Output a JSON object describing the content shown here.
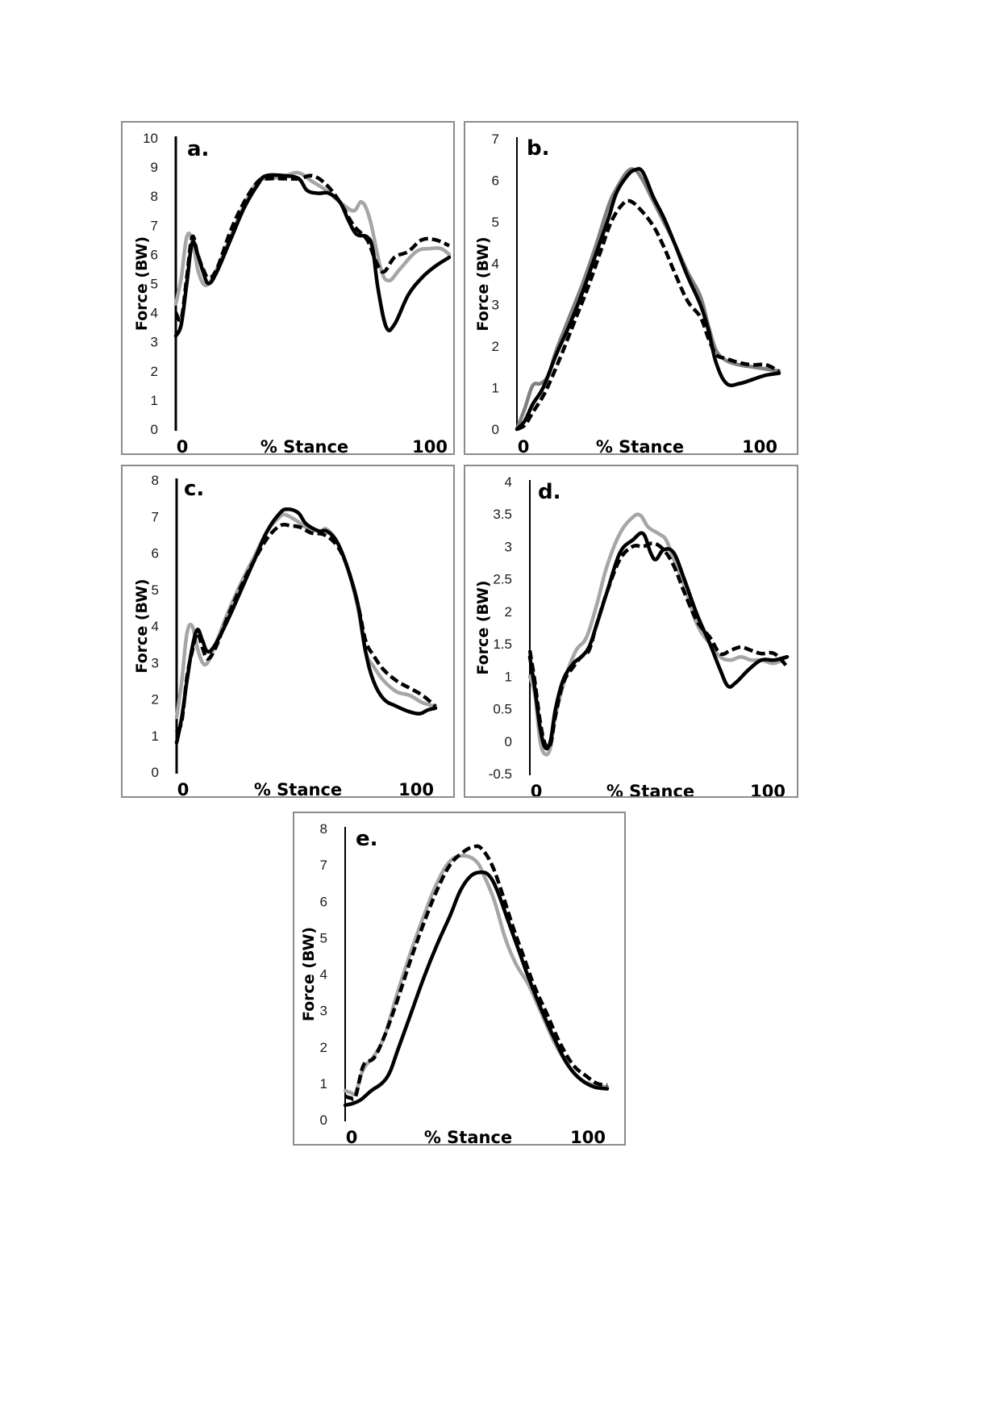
{
  "figure": {
    "series_styles": {
      "solid_black": {
        "color": "#000000",
        "dash": "solid"
      },
      "gray": {
        "color": "#a6a6a6",
        "dash": "solid"
      },
      "dark_gray": {
        "color": "#808080",
        "dash": "solid"
      },
      "dashed_black": {
        "color": "#000000",
        "dash": "dashed"
      }
    }
  },
  "chart_data": [
    {
      "id": "a",
      "type": "line",
      "panel_label": "a.",
      "title": "",
      "xlabel": "% Stance",
      "ylabel": "Force (BW)",
      "x_tick_labels": [
        "0",
        "100"
      ],
      "xlim": [
        0,
        100
      ],
      "ylim": [
        0,
        10
      ],
      "y_ticks": [
        0,
        1,
        2,
        3,
        4,
        5,
        6,
        7,
        8,
        9,
        10
      ],
      "y_tick_labels": [
        "0",
        "1",
        "2",
        "3",
        "4",
        "5",
        "6",
        "7",
        "8",
        "9",
        "10"
      ],
      "grid": false,
      "legend": "none",
      "series": [
        {
          "name": "solid-black",
          "style": "solid_black",
          "x": [
            0,
            2,
            4,
            6,
            8,
            10,
            12,
            15,
            20,
            25,
            30,
            33,
            40,
            45,
            48,
            52,
            56,
            60,
            63,
            66,
            70,
            72,
            74,
            77,
            80,
            85,
            90,
            95,
            100
          ],
          "y": [
            3.2,
            3.6,
            5.0,
            6.4,
            6.0,
            5.4,
            5.0,
            5.4,
            6.5,
            7.6,
            8.4,
            8.7,
            8.7,
            8.6,
            8.2,
            8.1,
            8.1,
            7.8,
            7.2,
            6.7,
            6.6,
            6.2,
            4.8,
            3.5,
            3.6,
            4.6,
            5.2,
            5.6,
            5.9
          ]
        },
        {
          "name": "gray",
          "style": "gray",
          "x": [
            0,
            2,
            4,
            6,
            8,
            10,
            12,
            15,
            20,
            25,
            30,
            35,
            40,
            45,
            50,
            55,
            60,
            65,
            68,
            71,
            75,
            78,
            82,
            88,
            93,
            97,
            100
          ],
          "y": [
            4.3,
            5.2,
            6.6,
            6.5,
            5.5,
            5.0,
            5.0,
            5.5,
            6.6,
            7.7,
            8.5,
            8.6,
            8.7,
            8.8,
            8.5,
            8.2,
            7.8,
            7.5,
            7.8,
            7.2,
            5.5,
            5.1,
            5.5,
            6.1,
            6.2,
            6.2,
            6.0
          ]
        },
        {
          "name": "dashed-black",
          "style": "dashed_black",
          "x": [
            0,
            2,
            4,
            6,
            8,
            10,
            12,
            15,
            20,
            25,
            30,
            33,
            40,
            45,
            50,
            55,
            60,
            65,
            70,
            73,
            76,
            80,
            85,
            90,
            95,
            100
          ],
          "y": [
            4.0,
            3.8,
            5.2,
            6.6,
            6.0,
            5.5,
            5.2,
            5.5,
            6.8,
            7.8,
            8.5,
            8.6,
            8.6,
            8.6,
            8.7,
            8.4,
            7.8,
            7.0,
            6.5,
            5.8,
            5.4,
            5.9,
            6.1,
            6.5,
            6.5,
            6.3
          ]
        }
      ]
    },
    {
      "id": "b",
      "type": "line",
      "panel_label": "b.",
      "title": "",
      "xlabel": "% Stance",
      "ylabel": "Force (BW)",
      "x_tick_labels": [
        "0",
        "100"
      ],
      "xlim": [
        0,
        100
      ],
      "ylim": [
        0,
        7
      ],
      "y_ticks": [
        0,
        1,
        2,
        3,
        4,
        5,
        6,
        7
      ],
      "y_tick_labels": [
        "0",
        "1",
        "2",
        "3",
        "4",
        "5",
        "6",
        "7"
      ],
      "grid": false,
      "legend": "none",
      "series": [
        {
          "name": "solid-black",
          "style": "solid_black",
          "x": [
            0,
            3,
            6,
            10,
            15,
            20,
            25,
            30,
            35,
            38,
            42,
            45,
            48,
            52,
            56,
            60,
            65,
            70,
            73,
            76,
            80,
            85,
            90,
            95,
            100
          ],
          "y": [
            0,
            0.2,
            0.6,
            1.0,
            1.8,
            2.5,
            3.3,
            4.2,
            5.1,
            5.7,
            6.1,
            6.25,
            6.2,
            5.6,
            5.1,
            4.5,
            3.7,
            3.0,
            2.4,
            1.6,
            1.1,
            1.1,
            1.2,
            1.3,
            1.35
          ]
        },
        {
          "name": "dark-gray",
          "style": "dark_gray",
          "x": [
            0,
            3,
            6,
            9,
            12,
            15,
            20,
            25,
            30,
            35,
            38,
            42,
            45,
            48,
            52,
            56,
            60,
            65,
            70,
            73,
            76,
            80,
            85,
            90,
            95,
            100
          ],
          "y": [
            0,
            0.5,
            1.05,
            1.1,
            1.3,
            1.9,
            2.7,
            3.5,
            4.4,
            5.4,
            5.8,
            6.2,
            6.25,
            6.0,
            5.5,
            5.0,
            4.5,
            3.8,
            3.2,
            2.5,
            1.9,
            1.65,
            1.55,
            1.5,
            1.45,
            1.4
          ]
        },
        {
          "name": "dashed-black",
          "style": "dashed_black",
          "x": [
            0,
            3,
            6,
            10,
            13,
            17,
            22,
            27,
            32,
            36,
            40,
            43,
            47,
            52,
            56,
            60,
            65,
            70,
            73,
            76,
            80,
            85,
            90,
            95,
            100
          ],
          "y": [
            0,
            0.1,
            0.4,
            0.8,
            1.2,
            1.8,
            2.6,
            3.4,
            4.3,
            5.0,
            5.4,
            5.5,
            5.3,
            4.9,
            4.4,
            3.8,
            3.1,
            2.7,
            2.2,
            1.8,
            1.7,
            1.6,
            1.55,
            1.55,
            1.4
          ]
        }
      ]
    },
    {
      "id": "c",
      "type": "line",
      "panel_label": "c.",
      "title": "",
      "xlabel": "% Stance",
      "ylabel": "Force (BW)",
      "x_tick_labels": [
        "0",
        "100"
      ],
      "xlim": [
        0,
        100
      ],
      "ylim": [
        0,
        8
      ],
      "y_ticks": [
        0,
        1,
        2,
        3,
        4,
        5,
        6,
        7,
        8
      ],
      "y_tick_labels": [
        "0",
        "1",
        "2",
        "3",
        "4",
        "5",
        "6",
        "7",
        "8"
      ],
      "grid": false,
      "legend": "none",
      "series": [
        {
          "name": "solid-black",
          "style": "solid_black",
          "x": [
            0,
            2,
            4,
            6,
            8,
            10,
            12,
            15,
            20,
            25,
            30,
            35,
            40,
            43,
            47,
            50,
            55,
            58,
            62,
            66,
            70,
            73,
            76,
            80,
            85,
            90,
            94,
            97,
            100
          ],
          "y": [
            0.8,
            1.5,
            2.5,
            3.4,
            3.9,
            3.6,
            3.3,
            3.5,
            4.2,
            5.0,
            5.8,
            6.6,
            7.1,
            7.2,
            7.1,
            6.8,
            6.6,
            6.6,
            6.3,
            5.6,
            4.6,
            3.3,
            2.5,
            2.0,
            1.8,
            1.65,
            1.6,
            1.7,
            1.75
          ]
        },
        {
          "name": "gray",
          "style": "gray",
          "x": [
            0,
            2,
            4,
            6,
            8,
            10,
            12,
            15,
            20,
            25,
            30,
            35,
            40,
            42,
            46,
            50,
            55,
            58,
            62,
            66,
            70,
            73,
            76,
            80,
            85,
            90,
            95,
            100
          ],
          "y": [
            1.5,
            2.5,
            3.8,
            4.0,
            3.4,
            3.0,
            3.0,
            3.5,
            4.4,
            5.2,
            5.9,
            6.6,
            7.0,
            7.05,
            6.9,
            6.7,
            6.6,
            6.65,
            6.3,
            5.6,
            4.5,
            3.3,
            2.9,
            2.5,
            2.2,
            2.1,
            1.9,
            1.8
          ]
        },
        {
          "name": "dashed-black",
          "style": "dashed_black",
          "x": [
            0,
            2,
            4,
            6,
            8,
            10,
            12,
            15,
            20,
            25,
            30,
            35,
            40,
            44,
            48,
            52,
            57,
            62,
            66,
            70,
            73,
            76,
            80,
            85,
            90,
            95,
            100
          ],
          "y": [
            1.1,
            1.4,
            2.6,
            3.3,
            3.8,
            3.4,
            3.1,
            3.4,
            4.3,
            5.1,
            5.8,
            6.4,
            6.75,
            6.75,
            6.7,
            6.55,
            6.5,
            6.2,
            5.6,
            4.6,
            3.6,
            3.2,
            2.8,
            2.5,
            2.3,
            2.1,
            1.8
          ]
        }
      ]
    },
    {
      "id": "d",
      "type": "line",
      "panel_label": "d.",
      "title": "",
      "xlabel": "% Stance",
      "ylabel": "Force (BW)",
      "x_tick_labels": [
        "0",
        "100"
      ],
      "xlim": [
        0,
        100
      ],
      "ylim": [
        -0.5,
        4
      ],
      "y_ticks": [
        -0.5,
        0,
        0.5,
        1,
        1.5,
        2,
        2.5,
        3,
        3.5,
        4
      ],
      "y_tick_labels": [
        "-0.5",
        "0",
        "0.5",
        "1",
        "1.5",
        "2",
        "2.5",
        "3",
        "3.5",
        "4"
      ],
      "grid": false,
      "legend": "none",
      "series": [
        {
          "name": "solid-black",
          "style": "solid_black",
          "x": [
            0,
            2,
            4,
            6,
            8,
            10,
            13,
            17,
            20,
            23,
            26,
            30,
            35,
            40,
            44,
            47,
            49,
            52,
            56,
            60,
            65,
            70,
            74,
            77,
            80,
            85,
            90,
            95,
            100
          ],
          "y": [
            1.3,
            0.8,
            0.2,
            -0.1,
            0.0,
            0.5,
            0.95,
            1.2,
            1.3,
            1.45,
            1.8,
            2.3,
            2.9,
            3.1,
            3.2,
            2.9,
            2.8,
            2.95,
            2.9,
            2.5,
            1.95,
            1.5,
            1.1,
            0.85,
            0.9,
            1.1,
            1.25,
            1.25,
            1.3
          ]
        },
        {
          "name": "gray",
          "style": "gray",
          "x": [
            0,
            2,
            4,
            6,
            8,
            10,
            14,
            18,
            22,
            26,
            30,
            35,
            40,
            43,
            46,
            50,
            53,
            56,
            60,
            65,
            70,
            74,
            78,
            82,
            86,
            90,
            95,
            100
          ],
          "y": [
            1.0,
            0.7,
            0.0,
            -0.2,
            -0.1,
            0.4,
            1.0,
            1.4,
            1.6,
            2.1,
            2.7,
            3.2,
            3.45,
            3.48,
            3.3,
            3.2,
            3.1,
            2.8,
            2.4,
            1.8,
            1.5,
            1.3,
            1.25,
            1.3,
            1.25,
            1.25,
            1.2,
            1.3
          ]
        },
        {
          "name": "dashed-black",
          "style": "dashed_black",
          "x": [
            0,
            2,
            4,
            6,
            8,
            10,
            13,
            17,
            20,
            23,
            26,
            30,
            35,
            40,
            44,
            48,
            52,
            56,
            60,
            65,
            70,
            74,
            78,
            82,
            86,
            90,
            95,
            100
          ],
          "y": [
            1.4,
            0.9,
            0.3,
            -0.05,
            -0.05,
            0.4,
            0.9,
            1.15,
            1.3,
            1.4,
            1.8,
            2.3,
            2.8,
            3.0,
            3.0,
            3.05,
            2.95,
            2.7,
            2.3,
            1.85,
            1.6,
            1.35,
            1.4,
            1.45,
            1.4,
            1.35,
            1.35,
            1.15
          ]
        }
      ]
    },
    {
      "id": "e",
      "type": "line",
      "panel_label": "e.",
      "title": "",
      "xlabel": "% Stance",
      "ylabel": "Force (BW)",
      "x_tick_labels": [
        "0",
        "100"
      ],
      "xlim": [
        0,
        100
      ],
      "ylim": [
        0,
        8
      ],
      "y_ticks": [
        0,
        1,
        2,
        3,
        4,
        5,
        6,
        7,
        8
      ],
      "y_tick_labels": [
        "0",
        "1",
        "2",
        "3",
        "4",
        "5",
        "6",
        "7",
        "8"
      ],
      "grid": false,
      "legend": "none",
      "series": [
        {
          "name": "solid-black",
          "style": "solid_black",
          "x": [
            0,
            3,
            6,
            10,
            14,
            17,
            20,
            25,
            30,
            35,
            40,
            44,
            48,
            52,
            55,
            58,
            62,
            66,
            70,
            75,
            80,
            85,
            90,
            95,
            100
          ],
          "y": [
            0.4,
            0.45,
            0.55,
            0.8,
            1.0,
            1.3,
            1.9,
            2.9,
            3.9,
            4.8,
            5.6,
            6.3,
            6.7,
            6.8,
            6.7,
            6.3,
            5.5,
            4.7,
            3.9,
            3.0,
            2.2,
            1.5,
            1.1,
            0.9,
            0.85
          ]
        },
        {
          "name": "gray",
          "style": "gray",
          "x": [
            0,
            2,
            4,
            7,
            11,
            15,
            20,
            25,
            30,
            35,
            40,
            45,
            50,
            53,
            57,
            61,
            65,
            70,
            75,
            80,
            85,
            90,
            95,
            100
          ],
          "y": [
            0.8,
            0.75,
            0.75,
            1.4,
            1.75,
            2.3,
            3.5,
            4.6,
            5.6,
            6.5,
            7.1,
            7.25,
            7.1,
            6.7,
            6.0,
            5.0,
            4.3,
            3.7,
            2.9,
            2.1,
            1.5,
            1.1,
            0.95,
            0.9
          ]
        },
        {
          "name": "dashed-black",
          "style": "dashed_black",
          "x": [
            0,
            2,
            4,
            7,
            11,
            15,
            20,
            25,
            30,
            35,
            40,
            45,
            49,
            52,
            56,
            60,
            64,
            68,
            72,
            77,
            82,
            87,
            92,
            96,
            100
          ],
          "y": [
            0.65,
            0.6,
            0.65,
            1.5,
            1.7,
            2.3,
            3.3,
            4.4,
            5.4,
            6.3,
            7.0,
            7.35,
            7.5,
            7.45,
            7.0,
            6.2,
            5.3,
            4.5,
            3.7,
            2.9,
            2.1,
            1.5,
            1.2,
            1.0,
            0.95
          ]
        }
      ]
    }
  ]
}
